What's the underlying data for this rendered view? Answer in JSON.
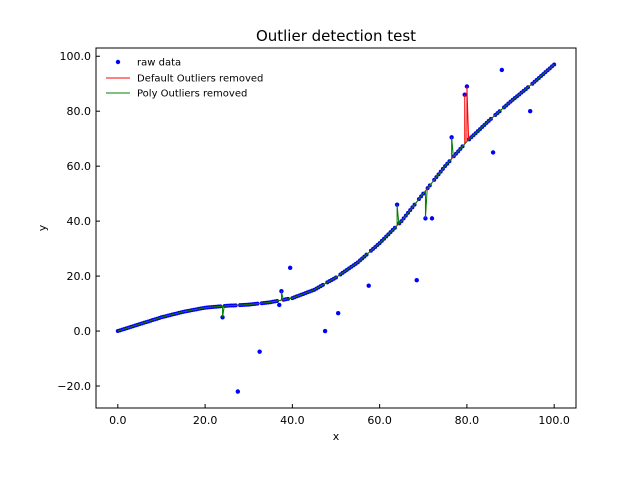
{
  "chart_data": {
    "type": "scatter",
    "title": "Outlier detection test",
    "xlabel": "x",
    "ylabel": "y",
    "xlim": [
      -5,
      105
    ],
    "ylim": [
      -28,
      103
    ],
    "xticks": [
      0,
      20,
      40,
      60,
      80,
      100
    ],
    "yticks": [
      -20,
      0,
      20,
      40,
      60,
      80,
      100
    ],
    "xtick_labels": [
      "0.0",
      "20.0",
      "40.0",
      "60.0",
      "80.0",
      "100.0"
    ],
    "ytick_labels": [
      "−20.0",
      "0.0",
      "20.0",
      "40.0",
      "60.0",
      "80.0",
      "100.0"
    ],
    "grid": false,
    "legend_position": "upper-left",
    "curve": {
      "x": [
        0,
        5,
        10,
        15,
        20,
        25,
        30,
        35,
        40,
        45,
        50,
        55,
        60,
        65,
        70,
        75,
        80,
        85,
        90,
        95,
        100
      ],
      "y": [
        0,
        2.5,
        5,
        7,
        8.5,
        9.2,
        9.6,
        10.5,
        12,
        15,
        19.5,
        25,
        32,
        40,
        50,
        60,
        69,
        76.5,
        83.5,
        90,
        97
      ]
    },
    "raw_outliers": [
      {
        "x": 24,
        "y": 5
      },
      {
        "x": 27.5,
        "y": -22
      },
      {
        "x": 32.5,
        "y": -7.5
      },
      {
        "x": 37,
        "y": 9.5
      },
      {
        "x": 37.5,
        "y": 14.5
      },
      {
        "x": 39.5,
        "y": 23
      },
      {
        "x": 47.5,
        "y": 0
      },
      {
        "x": 50.5,
        "y": 6.5
      },
      {
        "x": 57.5,
        "y": 16.5
      },
      {
        "x": 64,
        "y": 46
      },
      {
        "x": 68.5,
        "y": 18.5
      },
      {
        "x": 70.5,
        "y": 41
      },
      {
        "x": 72,
        "y": 41
      },
      {
        "x": 76.5,
        "y": 70.5
      },
      {
        "x": 79.5,
        "y": 86
      },
      {
        "x": 80,
        "y": 89
      },
      {
        "x": 86,
        "y": 65
      },
      {
        "x": 88,
        "y": 95
      },
      {
        "x": 94.5,
        "y": 80
      }
    ],
    "series": [
      {
        "name": "raw data",
        "color": "#0000ff",
        "marker": "dot"
      },
      {
        "name": "Default Outliers removed",
        "color": "#ff0000",
        "marker": "line",
        "spikes": [
          {
            "x": 79.5,
            "y": 86
          },
          {
            "x": 80,
            "y": 89
          }
        ]
      },
      {
        "name": "Poly Outliers removed",
        "color": "#008000",
        "marker": "line",
        "spikes": [
          {
            "x": 24,
            "y": 5
          },
          {
            "x": 37.5,
            "y": 14.5
          },
          {
            "x": 64,
            "y": 46
          },
          {
            "x": 70.5,
            "y": 41
          },
          {
            "x": 76.5,
            "y": 70.5
          }
        ]
      }
    ]
  }
}
